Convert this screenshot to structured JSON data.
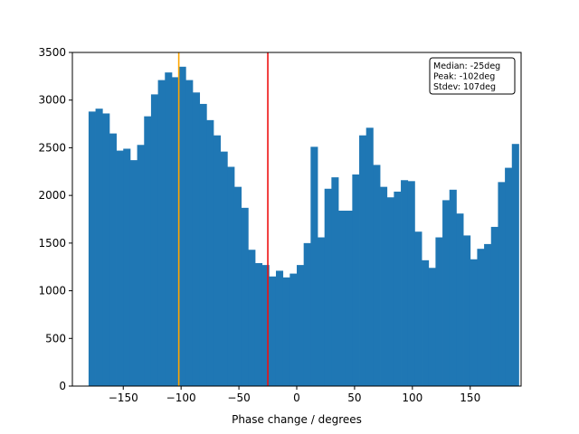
{
  "chart_data": {
    "type": "bar",
    "title": "",
    "xlabel": "Phase change / degrees",
    "ylabel": "",
    "xlim": [
      -194,
      194
    ],
    "ylim": [
      0,
      3500
    ],
    "bin_width": 6,
    "bin_start": -180,
    "values": [
      2880,
      2910,
      2860,
      2650,
      2470,
      2490,
      2370,
      2530,
      2830,
      3060,
      3210,
      3290,
      3240,
      3350,
      3210,
      3080,
      2960,
      2790,
      2630,
      2460,
      2300,
      2090,
      1870,
      1430,
      1290,
      1270,
      1150,
      1210,
      1140,
      1180,
      1270,
      1500,
      2510,
      1560,
      2070,
      2190,
      1840,
      1840,
      2220,
      2630,
      2710,
      2320,
      2090,
      1980,
      2040,
      2160,
      2150,
      1620,
      1320,
      1240,
      1560,
      1950,
      2060,
      1810,
      1580,
      1330,
      1440,
      1490,
      1670,
      2140,
      2290,
      2540
    ],
    "xticks": [
      -150,
      -100,
      -50,
      0,
      50,
      100,
      150
    ],
    "xtick_labels": [
      "−150",
      "−100",
      "−50",
      "0",
      "50",
      "100",
      "150"
    ],
    "yticks": [
      0,
      500,
      1000,
      1500,
      2000,
      2500,
      3000,
      3500
    ],
    "ytick_labels": [
      "0",
      "500",
      "1000",
      "1500",
      "2000",
      "2500",
      "3000",
      "3500"
    ],
    "vlines": [
      {
        "x": -102,
        "color": "#ffa500"
      },
      {
        "x": -25,
        "color": "#ee1111"
      }
    ],
    "annotation": [
      "Median: -25deg",
      "Peak: -102deg",
      "Stdev: 107deg"
    ],
    "legend_placement": "top-right",
    "bar_color": "#1f77b4",
    "grid": false
  }
}
